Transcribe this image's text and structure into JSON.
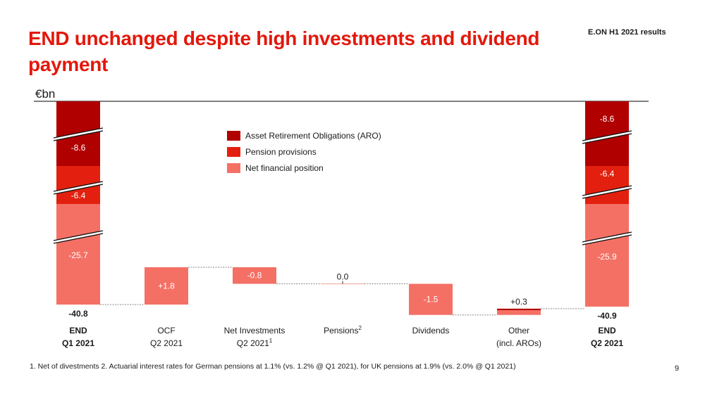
{
  "header": {
    "title": "END unchanged despite high investments and dividend payment",
    "brand": "E.ON H1 2021 results"
  },
  "chart_data": {
    "type": "bar",
    "subtype": "waterfall",
    "title": "END unchanged despite high investments and dividend payment",
    "ylabel": "€bn",
    "colors": {
      "aro": "#b00000",
      "pension": "#e3200f",
      "net_financial": "#f47065",
      "connector": "#888888",
      "axis": "#333333"
    },
    "legend": {
      "placement": "top-center",
      "entries": [
        {
          "key": "aro",
          "label": "Asset Retirement Obligations (ARO)"
        },
        {
          "key": "pension",
          "label": "Pension provisions"
        },
        {
          "key": "net_financial",
          "label": "Net financial position"
        }
      ]
    },
    "categories": [
      {
        "label_line1": "END",
        "label_line2": "Q1 2021",
        "sup": "",
        "bold": true
      },
      {
        "label_line1": "OCF",
        "label_line2": "Q2 2021",
        "sup": "",
        "bold": false
      },
      {
        "label_line1": "Net Investments",
        "label_line2": "Q2 2021",
        "sup": "1",
        "bold": false
      },
      {
        "label_line1": "Pensions",
        "label_line2": "",
        "sup": "2",
        "bold": false
      },
      {
        "label_line1": "Dividends",
        "label_line2": "",
        "sup": "",
        "bold": false
      },
      {
        "label_line1": "Other",
        "label_line2": "(incl. AROs)",
        "sup": "",
        "bold": false
      },
      {
        "label_line1": "END",
        "label_line2": "Q2 2021",
        "sup": "",
        "bold": true
      }
    ],
    "totals": [
      {
        "category_index": 0,
        "total": -40.8,
        "total_label": "-40.8",
        "segments": [
          {
            "key": "aro",
            "value": -8.6,
            "label": "-8.6"
          },
          {
            "key": "pension",
            "value": -6.4,
            "label": "-6.4"
          },
          {
            "key": "net_financial",
            "value": -25.7,
            "label": "-25.7"
          }
        ]
      },
      {
        "category_index": 6,
        "total": -40.9,
        "total_label": "-40.9",
        "segments": [
          {
            "key": "aro",
            "value": -8.6,
            "label": "-8.6"
          },
          {
            "key": "pension",
            "value": -6.4,
            "label": "-6.4"
          },
          {
            "key": "net_financial",
            "value": -25.9,
            "label": "-25.9"
          }
        ]
      }
    ],
    "deltas": [
      {
        "category_index": 1,
        "value": 1.8,
        "label": "+1.8",
        "label_inside": true
      },
      {
        "category_index": 2,
        "value": -0.8,
        "label": "-0.8",
        "label_inside": true
      },
      {
        "category_index": 3,
        "value": 0.0,
        "label": "0.0",
        "label_inside": false
      },
      {
        "category_index": 4,
        "value": -1.5,
        "label": "-1.5",
        "label_inside": true
      },
      {
        "category_index": 5,
        "value": 0.3,
        "label": "+0.3",
        "label_inside": false
      }
    ],
    "axis_breaks": true,
    "grid": false
  },
  "footnote": "1. Net of divestments   2. Actuarial interest rates for German pensions at 1.1% (vs. 1.2% @ Q1 2021), for UK pensions at 1.9% (vs. 2.0% @ Q1 2021)",
  "page_number": "9"
}
